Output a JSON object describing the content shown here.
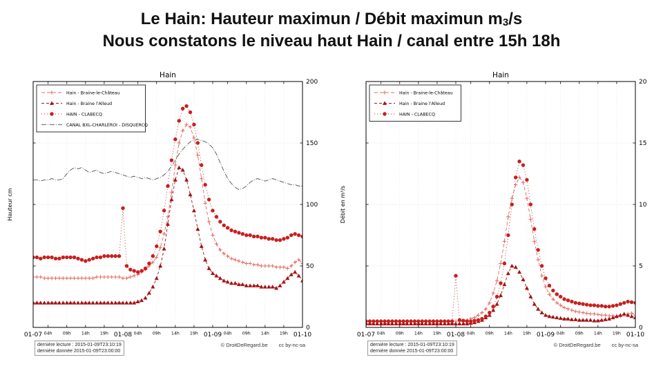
{
  "page": {
    "title_line1_a": "Le Hain: Hauteur maximun  / Débit maximun m",
    "title_sub": "3",
    "title_line1_b": "/s",
    "title_line2": "Nous constatons le niveau haut Hain / canal entre 15h 18h"
  },
  "footer": {
    "line1": "dernière lecture : 2015-01-09T23:10:19",
    "line2": "dernière donnée  2015-01-09T23:00:00",
    "credit": "© DroitDeRegard.be",
    "license": "cc by-nc-sa"
  },
  "chart_data": [
    {
      "type": "line",
      "title": "Hain",
      "ylabel": "Hauteur cm",
      "ylim": [
        0,
        200
      ],
      "y_ticks": [
        0,
        50,
        100,
        150,
        200
      ],
      "xlim": [
        0,
        72
      ],
      "x_step_hours": 1,
      "grid": true,
      "legend_position": "upper-left",
      "x_ticks": [
        {
          "h": 0,
          "label": "01-07",
          "major": true
        },
        {
          "h": 4,
          "label": "04h",
          "major": false
        },
        {
          "h": 9,
          "label": "09h",
          "major": false
        },
        {
          "h": 14,
          "label": "14h",
          "major": false
        },
        {
          "h": 19,
          "label": "19h",
          "major": false
        },
        {
          "h": 24,
          "label": "01-08",
          "major": true
        },
        {
          "h": 28,
          "label": "04h",
          "major": false
        },
        {
          "h": 33,
          "label": "09h",
          "major": false
        },
        {
          "h": 38,
          "label": "14h",
          "major": false
        },
        {
          "h": 43,
          "label": "19h",
          "major": false
        },
        {
          "h": 48,
          "label": "01-09",
          "major": true
        },
        {
          "h": 52,
          "label": "04h",
          "major": false
        },
        {
          "h": 57,
          "label": "09h",
          "major": false
        },
        {
          "h": 62,
          "label": "14h",
          "major": false
        },
        {
          "h": 67,
          "label": "19h",
          "major": false
        },
        {
          "h": 72,
          "label": "01-10",
          "major": true
        }
      ],
      "series": [
        {
          "name": "Hain - Braine-le-Château",
          "color": "#e0695f",
          "marker": "plus",
          "dash": "5,3",
          "line_width": 0.9,
          "values": [
            41,
            41,
            41,
            40,
            40,
            40,
            40,
            40,
            40,
            40,
            40,
            40,
            40,
            40,
            40,
            40,
            40,
            41,
            41,
            41,
            41,
            41,
            41,
            41,
            40,
            40,
            41,
            42,
            43,
            45,
            47,
            50,
            53,
            57,
            65,
            76,
            90,
            110,
            132,
            150,
            160,
            165,
            163,
            154,
            140,
            121,
            101,
            86,
            75,
            68,
            63,
            60,
            58,
            56,
            55,
            54,
            53,
            52,
            52,
            51,
            51,
            50,
            50,
            50,
            50,
            49,
            49,
            49,
            48,
            50,
            53,
            55,
            52
          ]
        },
        {
          "name": "Hain - Braine l'Alleud",
          "color": "#a31212",
          "marker": "triangle",
          "dash": "4,3",
          "line_width": 0.9,
          "values": [
            20,
            20,
            20,
            20,
            20,
            20,
            20,
            20,
            20,
            20,
            20,
            20,
            20,
            20,
            20,
            20,
            20,
            20,
            20,
            20,
            20,
            20,
            20,
            20,
            20,
            20,
            20,
            20,
            21,
            22,
            24,
            28,
            33,
            40,
            50,
            64,
            84,
            104,
            120,
            130,
            128,
            120,
            108,
            95,
            80,
            66,
            55,
            48,
            44,
            42,
            40,
            38,
            37,
            36,
            36,
            35,
            35,
            34,
            34,
            34,
            34,
            33,
            33,
            33,
            33,
            32,
            34,
            37,
            40,
            43,
            45,
            42,
            38
          ]
        },
        {
          "name": "HAIN - CLABECQ",
          "color": "#c81e1e",
          "marker": "circle",
          "dash": "1,3",
          "line_width": 0.9,
          "values": [
            57,
            57,
            56,
            57,
            57,
            57,
            56,
            56,
            57,
            57,
            57,
            57,
            56,
            55,
            54,
            55,
            56,
            57,
            57,
            58,
            58,
            58,
            58,
            58,
            97,
            50,
            47,
            46,
            45,
            46,
            48,
            52,
            58,
            66,
            78,
            95,
            115,
            136,
            153,
            168,
            178,
            180,
            175,
            165,
            150,
            132,
            116,
            104,
            95,
            90,
            86,
            83,
            81,
            79,
            78,
            77,
            76,
            75,
            75,
            74,
            74,
            73,
            73,
            72,
            72,
            71,
            71,
            72,
            73,
            75,
            76,
            75,
            74
          ]
        },
        {
          "name": "CANAL BXL-CHARLEROI - DISQUERCQ",
          "color": "#3a3a3a",
          "marker": "none",
          "dash": "7,2,1,2",
          "line_width": 0.8,
          "values": [
            120,
            120,
            119,
            120,
            120,
            121,
            120,
            120,
            121,
            125,
            128,
            130,
            129,
            130,
            128,
            126,
            127,
            128,
            126,
            125,
            126,
            127,
            126,
            125,
            124,
            123,
            122,
            123,
            122,
            121,
            122,
            121,
            120,
            121,
            122,
            124,
            127,
            131,
            136,
            141,
            145,
            148,
            151,
            152,
            153,
            152,
            151,
            149,
            146,
            141,
            134,
            127,
            121,
            117,
            114,
            112,
            113,
            115,
            118,
            120,
            121,
            120,
            119,
            120,
            121,
            120,
            119,
            118,
            117,
            116,
            116,
            115,
            115
          ]
        }
      ]
    },
    {
      "type": "line",
      "title": "Hain",
      "ylabel": "Débit en m³/s",
      "ylim": [
        0,
        20
      ],
      "y_ticks": [
        0,
        5,
        10,
        15,
        20
      ],
      "xlim": [
        0,
        72
      ],
      "x_step_hours": 1,
      "grid": true,
      "legend_position": "upper-left",
      "x_ticks": [
        {
          "h": 0,
          "label": "01-07",
          "major": true
        },
        {
          "h": 4,
          "label": "04h",
          "major": false
        },
        {
          "h": 9,
          "label": "09h",
          "major": false
        },
        {
          "h": 14,
          "label": "14h",
          "major": false
        },
        {
          "h": 19,
          "label": "19h",
          "major": false
        },
        {
          "h": 24,
          "label": "01-08",
          "major": true
        },
        {
          "h": 28,
          "label": "04h",
          "major": false
        },
        {
          "h": 33,
          "label": "09h",
          "major": false
        },
        {
          "h": 38,
          "label": "14h",
          "major": false
        },
        {
          "h": 43,
          "label": "19h",
          "major": false
        },
        {
          "h": 48,
          "label": "01-09",
          "major": true
        },
        {
          "h": 52,
          "label": "04h",
          "major": false
        },
        {
          "h": 57,
          "label": "09h",
          "major": false
        },
        {
          "h": 62,
          "label": "14h",
          "major": false
        },
        {
          "h": 67,
          "label": "19h",
          "major": false
        },
        {
          "h": 72,
          "label": "01-10",
          "major": true
        }
      ],
      "series": [
        {
          "name": "Hain - Braine-le-Château",
          "color": "#e0695f",
          "marker": "plus",
          "dash": "5,3",
          "line_width": 0.9,
          "values": [
            0.5,
            0.5,
            0.5,
            0.5,
            0.5,
            0.5,
            0.5,
            0.5,
            0.5,
            0.5,
            0.5,
            0.5,
            0.5,
            0.5,
            0.5,
            0.5,
            0.5,
            0.5,
            0.5,
            0.5,
            0.5,
            0.5,
            0.5,
            0.5,
            0.5,
            0.5,
            0.5,
            0.6,
            0.7,
            0.8,
            1.0,
            1.2,
            1.5,
            2.0,
            2.8,
            3.8,
            5.2,
            7.0,
            9.0,
            10.5,
            11.6,
            12.2,
            11.8,
            10.5,
            8.8,
            7.0,
            5.5,
            4.2,
            3.3,
            2.7,
            2.3,
            2.0,
            1.8,
            1.6,
            1.5,
            1.4,
            1.3,
            1.25,
            1.2,
            1.15,
            1.1,
            1.1,
            1.05,
            1.0,
            1.0,
            0.95,
            0.95,
            0.9,
            0.9,
            1.0,
            1.1,
            1.15,
            1.0
          ]
        },
        {
          "name": "Hain - Braine l'Alleud",
          "color": "#a31212",
          "marker": "triangle",
          "dash": "4,3",
          "line_width": 0.9,
          "values": [
            0.3,
            0.3,
            0.3,
            0.3,
            0.3,
            0.3,
            0.3,
            0.3,
            0.3,
            0.3,
            0.3,
            0.3,
            0.3,
            0.3,
            0.3,
            0.3,
            0.3,
            0.3,
            0.3,
            0.3,
            0.3,
            0.3,
            0.3,
            0.3,
            0.3,
            0.3,
            0.3,
            0.3,
            0.35,
            0.4,
            0.5,
            0.6,
            0.8,
            1.0,
            1.4,
            1.9,
            2.6,
            3.5,
            4.4,
            5.0,
            4.9,
            4.5,
            3.9,
            3.2,
            2.5,
            1.9,
            1.5,
            1.2,
            1.0,
            0.9,
            0.85,
            0.8,
            0.75,
            0.7,
            0.7,
            0.65,
            0.65,
            0.6,
            0.6,
            0.6,
            0.6,
            0.55,
            0.55,
            0.6,
            0.65,
            0.7,
            0.8,
            0.9,
            1.0,
            1.1,
            1.0,
            0.9,
            0.8
          ]
        },
        {
          "name": "HAIN - CLABECQ",
          "color": "#c81e1e",
          "marker": "circle",
          "dash": "1,3",
          "line_width": 0.9,
          "values": [
            0.5,
            0.5,
            0.5,
            0.5,
            0.5,
            0.5,
            0.5,
            0.5,
            0.5,
            0.5,
            0.5,
            0.5,
            0.5,
            0.5,
            0.5,
            0.5,
            0.5,
            0.5,
            0.5,
            0.5,
            0.5,
            0.5,
            0.5,
            0.5,
            4.2,
            0.6,
            0.55,
            0.5,
            0.5,
            0.55,
            0.6,
            0.7,
            0.9,
            1.2,
            1.7,
            2.5,
            3.6,
            5.2,
            7.5,
            10.0,
            12.2,
            13.5,
            13.2,
            12.0,
            10.0,
            8.0,
            6.3,
            5.0,
            4.0,
            3.4,
            3.0,
            2.7,
            2.5,
            2.3,
            2.2,
            2.1,
            2.0,
            1.95,
            1.9,
            1.85,
            1.8,
            1.8,
            1.75,
            1.75,
            1.7,
            1.7,
            1.75,
            1.8,
            1.9,
            2.0,
            2.1,
            2.05,
            2.0
          ]
        }
      ]
    }
  ]
}
